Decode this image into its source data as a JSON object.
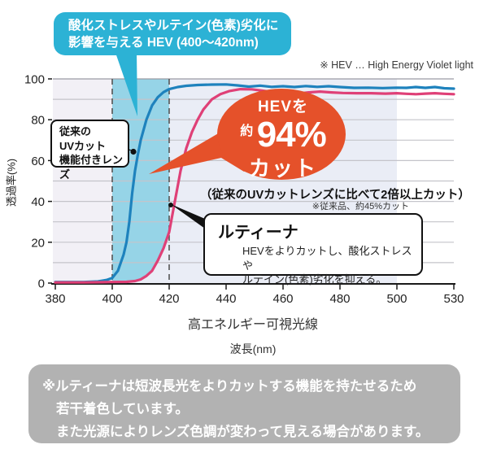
{
  "colors": {
    "bubble_cyan": "#2cb2d5",
    "band_cyan": "#96d4e7",
    "blue_curve": "#1e82bd",
    "pink_curve": "#df4077",
    "orange": "#e5512a",
    "bg_left": "#f2f0f6",
    "bg_mid": "#eaedf6",
    "grid": "#c4c4ca",
    "grid_top": "#9a9aa4",
    "axis": "#1a1a1a",
    "dashed": "#555555",
    "note_gray": "#b2b2b2"
  },
  "hev_callout": {
    "line1": "酸化ストレスやルテイン(色素)劣化に",
    "line2": "影響を与える HEV (400〜420nm)"
  },
  "hev_legend": "※ HEV … High Energy Violet light",
  "burst": {
    "top": "HEVを",
    "about": "約",
    "percent": "94%",
    "bottom": "カット"
  },
  "comparison": {
    "main": "（従来のUVカットレンズに比べて2倍以上カット）",
    "sub": "※従来品、約45%カット"
  },
  "conventional_callout": {
    "line1": "従来の",
    "line2": "UVカット",
    "line3": "機能付きレンズ"
  },
  "lutina_callout": {
    "title": "ルティーナ",
    "line1": "HEVをよりカットし、酸化ストレスや",
    "line2": "ルテイン(色素)劣化を抑える。"
  },
  "footnote": {
    "line1": "※ルティーナは短波長光をよりカットする機能を持たせるため",
    "line2": "若干着色しています。",
    "line3": "また光源によりレンズ色調が変わって見える場合があります。"
  },
  "chart_data": {
    "type": "line",
    "xlabel": "高エネルギー可視光線",
    "xlabel_sub": "波長(nm)",
    "ylabel": "透過率(%)",
    "xlim": [
      380,
      530
    ],
    "ylim": [
      0,
      100
    ],
    "x_ticks": [
      380,
      400,
      420,
      440,
      460,
      480,
      500,
      530
    ],
    "y_ticks": [
      0,
      20,
      40,
      60,
      80,
      100
    ],
    "grid": "horizontal every 10%",
    "legend_position": "callout-boxes-on-plot",
    "hev_band_nm": [
      400,
      420
    ],
    "tinted_bg_nm": [
      380,
      500
    ],
    "annotation_cut_percent": 94,
    "annotation_conventional_cut_percent": 45,
    "series": [
      {
        "name": "従来のUVカット機能付きレンズ",
        "color": "#1e82bd",
        "points": [
          [
            380,
            0.5
          ],
          [
            385,
            0.5
          ],
          [
            390,
            0.5
          ],
          [
            395,
            0.8
          ],
          [
            398,
            1.5
          ],
          [
            400,
            2.5
          ],
          [
            402,
            6
          ],
          [
            404,
            14
          ],
          [
            405,
            20
          ],
          [
            406,
            30
          ],
          [
            407,
            44
          ],
          [
            408,
            55
          ],
          [
            409,
            63
          ],
          [
            410,
            70
          ],
          [
            412,
            80
          ],
          [
            414,
            87
          ],
          [
            416,
            91
          ],
          [
            418,
            93.5
          ],
          [
            420,
            95
          ],
          [
            423,
            96
          ],
          [
            426,
            96.6
          ],
          [
            430,
            97
          ],
          [
            435,
            97.2
          ],
          [
            440,
            97.3
          ],
          [
            444,
            96.8
          ],
          [
            448,
            96.2
          ],
          [
            452,
            96.7
          ],
          [
            456,
            96.1
          ],
          [
            460,
            96.4
          ],
          [
            464,
            96
          ],
          [
            468,
            96.5
          ],
          [
            472,
            96.1
          ],
          [
            476,
            96.4
          ],
          [
            480,
            96
          ],
          [
            485,
            95.6
          ],
          [
            490,
            95.7
          ],
          [
            495,
            95.5
          ],
          [
            500,
            95.7
          ],
          [
            505,
            95.6
          ],
          [
            510,
            96
          ],
          [
            515,
            95.6
          ],
          [
            520,
            96
          ],
          [
            525,
            95.4
          ],
          [
            530,
            95.2
          ]
        ]
      },
      {
        "name": "ルティーナ",
        "color": "#df4077",
        "points": [
          [
            380,
            0.3
          ],
          [
            390,
            0.3
          ],
          [
            400,
            0.5
          ],
          [
            405,
            0.6
          ],
          [
            408,
            1
          ],
          [
            410,
            1.8
          ],
          [
            412,
            3.5
          ],
          [
            414,
            6
          ],
          [
            416,
            11
          ],
          [
            418,
            17
          ],
          [
            420,
            25
          ],
          [
            422,
            40
          ],
          [
            424,
            55
          ],
          [
            426,
            66
          ],
          [
            428,
            74
          ],
          [
            430,
            80
          ],
          [
            432,
            85
          ],
          [
            435,
            90
          ],
          [
            438,
            92.5
          ],
          [
            441,
            94
          ],
          [
            445,
            95
          ],
          [
            449,
            94.9
          ],
          [
            453,
            94.2
          ],
          [
            457,
            93.4
          ],
          [
            461,
            93
          ],
          [
            465,
            92.8
          ],
          [
            469,
            93.4
          ],
          [
            473,
            93.8
          ],
          [
            477,
            93.4
          ],
          [
            481,
            93.1
          ],
          [
            486,
            93
          ],
          [
            491,
            93
          ],
          [
            496,
            92.8
          ],
          [
            500,
            93
          ],
          [
            505,
            92.7
          ],
          [
            510,
            92.5
          ],
          [
            515,
            92.8
          ],
          [
            520,
            93
          ],
          [
            525,
            92.7
          ],
          [
            530,
            92.5
          ]
        ]
      }
    ]
  }
}
